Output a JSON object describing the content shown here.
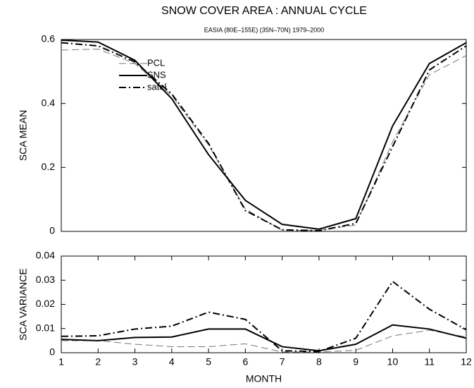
{
  "chart_data": [
    {
      "type": "line",
      "title": "SNOW COVER AREA  : ANNUAL CYCLE",
      "subtitle": "EASIA (80E–155E) (35N–70N)  1979–2000",
      "ylabel": "SCA MEAN",
      "x": [
        1,
        2,
        3,
        4,
        5,
        6,
        7,
        8,
        9,
        10,
        11,
        12
      ],
      "xlim": [
        1,
        12
      ],
      "ylim": [
        0,
        0.6
      ],
      "yticks": [
        0,
        0.2,
        0.4,
        0.6
      ],
      "legend": "upper-left",
      "series": [
        {
          "name": "PCL",
          "color": "#777777",
          "dash": "dashed",
          "values": [
            0.567,
            0.57,
            0.525,
            0.425,
            0.27,
            0.07,
            0.003,
            0.003,
            0.02,
            0.28,
            0.49,
            0.55
          ]
        },
        {
          "name": "SNS",
          "color": "#000000",
          "dash": "solid",
          "values": [
            0.598,
            0.592,
            0.535,
            0.415,
            0.24,
            0.097,
            0.022,
            0.007,
            0.04,
            0.33,
            0.525,
            0.59
          ]
        },
        {
          "name": "satel",
          "color": "#000000",
          "dash": "dashdot",
          "values": [
            0.59,
            0.58,
            0.53,
            0.43,
            0.275,
            0.065,
            0.005,
            0.002,
            0.025,
            0.265,
            0.505,
            0.58
          ]
        }
      ]
    },
    {
      "type": "line",
      "ylabel": "SCA VARIANCE",
      "xlabel": "MONTH",
      "x": [
        1,
        2,
        3,
        4,
        5,
        6,
        7,
        8,
        9,
        10,
        11,
        12
      ],
      "xlim": [
        1,
        12
      ],
      "xticks": [
        1,
        2,
        3,
        4,
        5,
        6,
        7,
        8,
        9,
        10,
        11,
        12
      ],
      "ylim": [
        0,
        0.04
      ],
      "yticks": [
        0,
        0.01,
        0.02,
        0.03,
        0.04
      ],
      "series": [
        {
          "color": "#777777",
          "dash": "dashed",
          "values": [
            0.005,
            0.005,
            0.0035,
            0.0025,
            0.0025,
            0.0037,
            0.0003,
            0.0003,
            0.001,
            0.007,
            0.0093,
            0.0065
          ]
        },
        {
          "color": "#000000",
          "dash": "solid",
          "values": [
            0.0055,
            0.005,
            0.0063,
            0.0065,
            0.0098,
            0.0098,
            0.0025,
            0.0008,
            0.0035,
            0.0115,
            0.0098,
            0.006
          ]
        },
        {
          "color": "#000000",
          "dash": "dashdot",
          "values": [
            0.0068,
            0.007,
            0.0098,
            0.011,
            0.0168,
            0.0138,
            0.0008,
            0.0005,
            0.006,
            0.0295,
            0.018,
            0.0095
          ]
        }
      ]
    }
  ]
}
